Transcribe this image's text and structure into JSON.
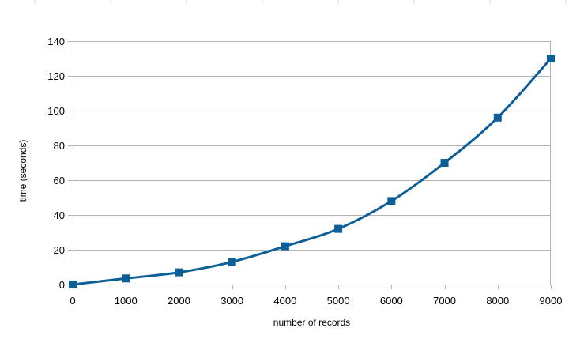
{
  "chart_data": {
    "type": "line",
    "title": "",
    "xlabel": "number of records",
    "ylabel": "time  (seconds)",
    "x": [
      0,
      1000,
      2000,
      3000,
      4000,
      5000,
      6000,
      7000,
      8000,
      9000
    ],
    "series": [
      {
        "name": "time",
        "values": [
          0,
          3.5,
          7,
          13,
          22,
          32,
          48,
          70,
          96,
          130
        ]
      }
    ],
    "xlim": [
      0,
      9000
    ],
    "ylim": [
      0,
      140
    ],
    "xticks": [
      0,
      1000,
      2000,
      3000,
      4000,
      5000,
      6000,
      7000,
      8000,
      9000
    ],
    "yticks": [
      0,
      20,
      40,
      60,
      80,
      100,
      120,
      140
    ],
    "grid": "horizontal",
    "legend": "none",
    "line_color": "#0d5f98",
    "marker": "square",
    "smooth": true
  }
}
